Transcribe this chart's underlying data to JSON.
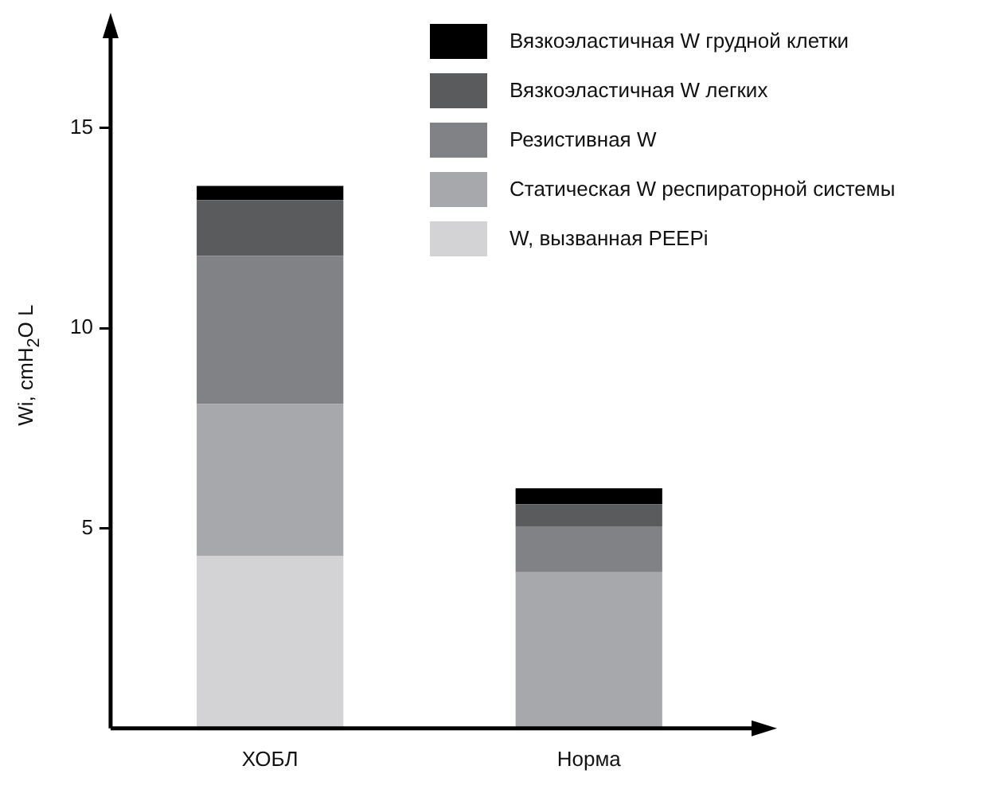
{
  "chart_data": {
    "type": "bar",
    "stacked": true,
    "ylabel": "Wi, cmH$_{2}$O L",
    "categories": [
      "ХОБЛ",
      "Норма"
    ],
    "ylim": [
      0,
      17.4
    ],
    "yticks": [
      5,
      10,
      15
    ],
    "grid": false,
    "legend": "top right",
    "series": [
      {
        "name": "W, вызванная PEEPi",
        "color": "#d3d3d5",
        "values": [
          4.3,
          0
        ]
      },
      {
        "name": "Статическая W респираторной системы",
        "color": "#a7a8ab",
        "values": [
          3.8,
          3.9
        ]
      },
      {
        "name": "Резистивная W",
        "color": "#818285",
        "values": [
          3.7,
          1.15
        ]
      },
      {
        "name": "Вязкоэластичная W легких",
        "color": "#5a5b5d",
        "values": [
          1.4,
          0.55
        ]
      },
      {
        "name": "Вязкоэластичная W грудной клетки",
        "color": "#000000",
        "values": [
          0.35,
          0.4
        ]
      }
    ]
  }
}
